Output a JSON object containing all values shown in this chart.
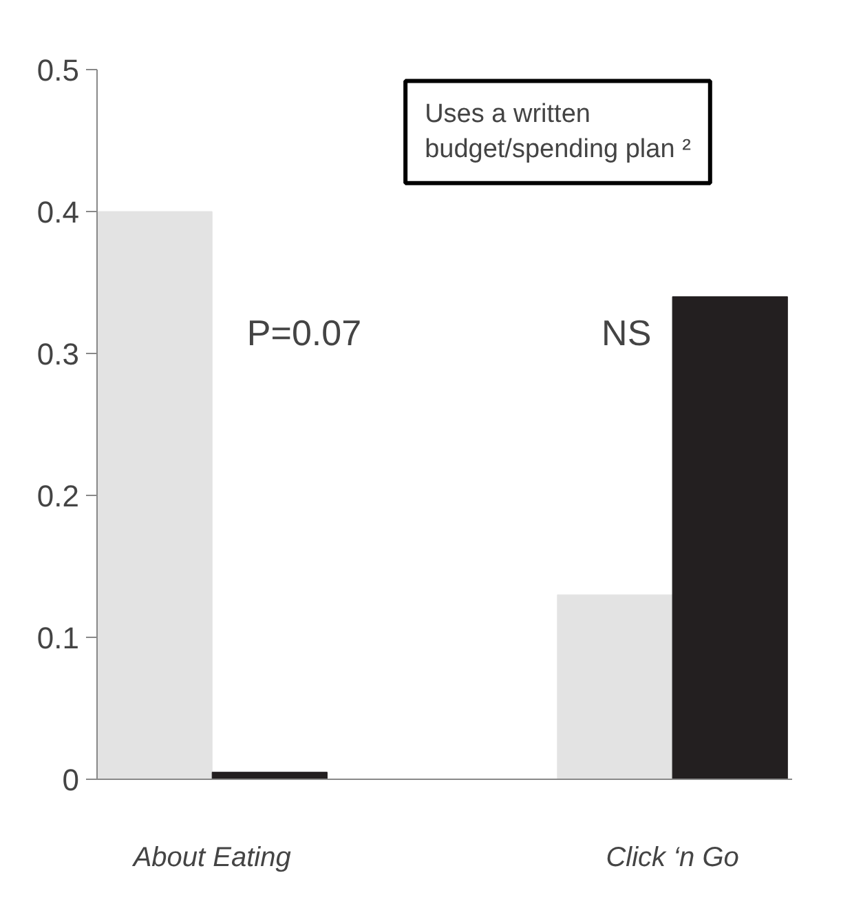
{
  "chart_data": {
    "type": "bar",
    "title": "Uses a written budget/spending plan ²",
    "categories": [
      "About Eating",
      "Click ‘n Go"
    ],
    "series": [
      {
        "color": "#e3e3e3",
        "values": [
          0.4,
          0.13
        ]
      },
      {
        "color": "#231f20",
        "values": [
          0.005,
          0.34
        ]
      }
    ],
    "ylim": [
      0,
      0.5
    ],
    "yticks": [
      0,
      0.1,
      0.2,
      0.3,
      0.4,
      0.5
    ],
    "annotations": [
      "P=0.07",
      "NS"
    ],
    "grid": false
  }
}
